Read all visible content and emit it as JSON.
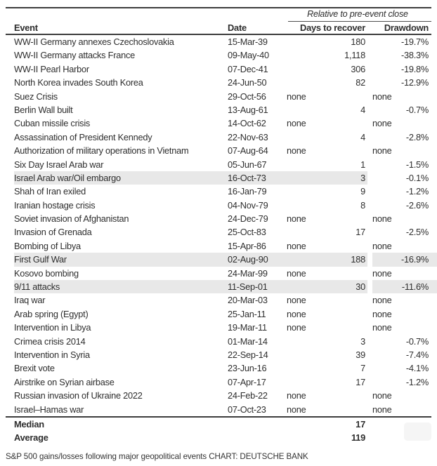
{
  "chart_data": {
    "type": "table",
    "span_header": "Relative to pre-event close",
    "columns": [
      "Event",
      "Date",
      "Days to recover",
      "Drawdown"
    ],
    "rows": [
      {
        "event": "WW-II Germany annexes Czechoslovakia",
        "date": "15-Mar-39",
        "days": "180",
        "drawdown": "-19.7%"
      },
      {
        "event": "WW-II Germany attacks France",
        "date": "09-May-40",
        "days": "1,118",
        "drawdown": "-38.3%"
      },
      {
        "event": "WW-II Pearl Harbor",
        "date": "07-Dec-41",
        "days": "306",
        "drawdown": "-19.8%"
      },
      {
        "event": "North Korea invades South Korea",
        "date": "24-Jun-50",
        "days": "82",
        "drawdown": "-12.9%"
      },
      {
        "event": "Suez Crisis",
        "date": "29-Oct-56",
        "days": "none",
        "drawdown": "none"
      },
      {
        "event": "Berlin Wall built",
        "date": "13-Aug-61",
        "days": "4",
        "drawdown": "-0.7%"
      },
      {
        "event": "Cuban missile crisis",
        "date": "14-Oct-62",
        "days": "none",
        "drawdown": "none"
      },
      {
        "event": "Assassination of President Kennedy",
        "date": "22-Nov-63",
        "days": "4",
        "drawdown": "-2.8%"
      },
      {
        "event": "Authorization of military operations in Vietnam",
        "date": "07-Aug-64",
        "days": "none",
        "drawdown": "none"
      },
      {
        "event": "Six Day Israel Arab war",
        "date": "05-Jun-67",
        "days": "1",
        "drawdown": "-1.5%"
      },
      {
        "event": "Israel Arab war/Oil embargo",
        "date": "16-Oct-73",
        "days": "3",
        "drawdown": "-0.1%"
      },
      {
        "event": "Shah of Iran exiled",
        "date": "16-Jan-79",
        "days": "9",
        "drawdown": "-1.2%"
      },
      {
        "event": "Iranian hostage crisis",
        "date": "04-Nov-79",
        "days": "8",
        "drawdown": "-2.6%"
      },
      {
        "event": "Soviet invasion of Afghanistan",
        "date": "24-Dec-79",
        "days": "none",
        "drawdown": "none"
      },
      {
        "event": "Invasion of Grenada",
        "date": "25-Oct-83",
        "days": "17",
        "drawdown": "-2.5%"
      },
      {
        "event": "Bombing of Libya",
        "date": "15-Apr-86",
        "days": "none",
        "drawdown": "none"
      },
      {
        "event": "First Gulf War",
        "date": "02-Aug-90",
        "days": "188",
        "drawdown": "-16.9%"
      },
      {
        "event": "Kosovo bombing",
        "date": "24-Mar-99",
        "days": "none",
        "drawdown": "none"
      },
      {
        "event": "9/11 attacks",
        "date": "11-Sep-01",
        "days": "30",
        "drawdown": "-11.6%"
      },
      {
        "event": "Iraq war",
        "date": "20-Mar-03",
        "days": "none",
        "drawdown": "none"
      },
      {
        "event": "Arab spring (Egypt)",
        "date": "25-Jan-11",
        "days": "none",
        "drawdown": "none"
      },
      {
        "event": "Intervention in Libya",
        "date": "19-Mar-11",
        "days": "none",
        "drawdown": "none"
      },
      {
        "event": "Crimea crisis 2014",
        "date": "01-Mar-14",
        "days": "3",
        "drawdown": "-0.7%"
      },
      {
        "event": "Intervention in Syria",
        "date": "22-Sep-14",
        "days": "39",
        "drawdown": "-7.4%"
      },
      {
        "event": "Brexit vote",
        "date": "23-Jun-16",
        "days": "7",
        "drawdown": "-4.1%"
      },
      {
        "event": "Airstrike on Syrian airbase",
        "date": "07-Apr-17",
        "days": "17",
        "drawdown": "-1.2%"
      },
      {
        "event": "Russian invasion of Ukraine 2022",
        "date": "24-Feb-22",
        "days": "none",
        "drawdown": "none"
      },
      {
        "event": "Israel–Hamas war",
        "date": "07-Oct-23",
        "days": "none",
        "drawdown": "none"
      }
    ],
    "summary": [
      {
        "label": "Median",
        "days": "17"
      },
      {
        "label": "Average",
        "days": "119"
      }
    ],
    "caption": "S&P 500 gains/losses following major geopolitical events CHART: DEUTSCHE BANK"
  },
  "highlights": {
    "left_only_rows": [
      10
    ],
    "full_rows": [
      16,
      18
    ]
  },
  "colors": {
    "highlight": "#e8e8e8",
    "rule_dark": "#3d3d3d",
    "text": "#2e2e2e"
  }
}
